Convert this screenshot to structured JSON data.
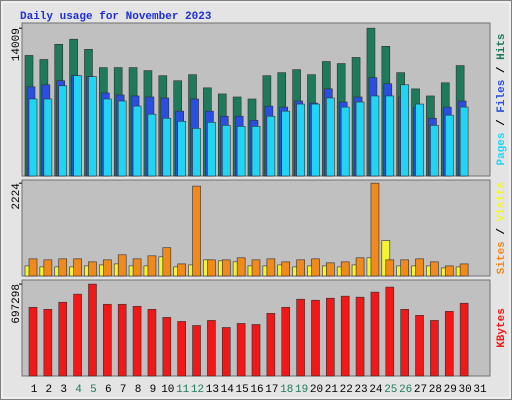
{
  "chart_data": [
    {
      "type": "bar",
      "title": "Daily usage for November 2023",
      "legend_separator": "/",
      "ylim": [
        0,
        14500
      ],
      "yticks": [
        14009
      ],
      "series": [
        {
          "name": "Hits",
          "color": "#1f7a5c",
          "values": [
            11427,
            11043,
            12484,
            12964,
            12004,
            10275,
            10275,
            10275,
            9987,
            9507,
            9027,
            9603,
            8355,
            7778,
            7490,
            7298,
            9507,
            9795,
            10083,
            9603,
            10851,
            10659,
            11235,
            14009,
            12292,
            9795,
            8259,
            7586,
            8835,
            10467,
            null
          ]
        },
        {
          "name": "Files",
          "color": "#2a4fe0",
          "values": [
            8451,
            8643,
            9027,
            9507,
            9411,
            7874,
            7682,
            7586,
            7490,
            7394,
            6146,
            7298,
            6146,
            5666,
            5666,
            5282,
            6626,
            6530,
            7106,
            6914,
            8259,
            7010,
            7490,
            9315,
            8739,
            7490,
            6530,
            5474,
            6530,
            7106,
            null
          ]
        },
        {
          "name": "Pages",
          "color": "#22d4f4",
          "values": [
            7298,
            7298,
            8547,
            9507,
            9411,
            7298,
            7106,
            6626,
            5858,
            5474,
            5186,
            4513,
            5090,
            4802,
            4705,
            4705,
            5666,
            6146,
            6818,
            6818,
            7394,
            6530,
            7010,
            7586,
            7586,
            8643,
            6818,
            4802,
            5762,
            6530,
            null
          ]
        }
      ]
    },
    {
      "type": "bar",
      "legend_separator": "/",
      "ylim": [
        0,
        2300
      ],
      "yticks": [
        2224
      ],
      "series": [
        {
          "name": "Visits",
          "color": "#f4f430",
          "values": [
            242,
            218,
            218,
            218,
            242,
            266,
            290,
            242,
            242,
            460,
            218,
            266,
            387,
            363,
            339,
            242,
            242,
            266,
            218,
            242,
            242,
            218,
            266,
            436,
            847,
            242,
            242,
            242,
            194,
            218,
            null
          ]
        },
        {
          "name": "Sites",
          "color": "#f08a1c",
          "values": [
            411,
            387,
            411,
            411,
            339,
            387,
            508,
            411,
            484,
            678,
            290,
            2154,
            387,
            387,
            436,
            387,
            411,
            339,
            387,
            411,
            315,
            339,
            436,
            2224,
            387,
            387,
            411,
            339,
            242,
            290,
            null
          ]
        }
      ]
    },
    {
      "type": "bar",
      "categories": [
        "1",
        "2",
        "3",
        "4",
        "5",
        "6",
        "7",
        "8",
        "9",
        "10",
        "11",
        "12",
        "13",
        "14",
        "15",
        "16",
        "17",
        "18",
        "19",
        "20",
        "21",
        "22",
        "23",
        "24",
        "25",
        "26",
        "27",
        "28",
        "29",
        "30",
        "31"
      ],
      "category_colors": [
        "#000000",
        "#000000",
        "#000000",
        "#1f7a5c",
        "#1f7a5c",
        "#000000",
        "#000000",
        "#000000",
        "#000000",
        "#000000",
        "#1f7a5c",
        "#1f7a5c",
        "#000000",
        "#000000",
        "#000000",
        "#000000",
        "#000000",
        "#1f7a5c",
        "#1f7a5c",
        "#000000",
        "#000000",
        "#000000",
        "#000000",
        "#000000",
        "#1f7a5c",
        "#1f7a5c",
        "#000000",
        "#000000",
        "#000000",
        "#000000",
        "#000000"
      ],
      "ylim": [
        0,
        728000
      ],
      "yticks": [
        697298
      ],
      "series": [
        {
          "name": "KBytes",
          "color": "#f01818",
          "values": [
            521000,
            505760,
            559400,
            620700,
            697298,
            544000,
            544000,
            528700,
            505760,
            444450,
            413800,
            383150,
            421470,
            367800,
            398500,
            390800,
            475100,
            521100,
            582400,
            574700,
            590000,
            605400,
            597700,
            636000,
            674300,
            505760,
            459800,
            421470,
            490400,
            551700,
            null
          ]
        }
      ]
    }
  ]
}
